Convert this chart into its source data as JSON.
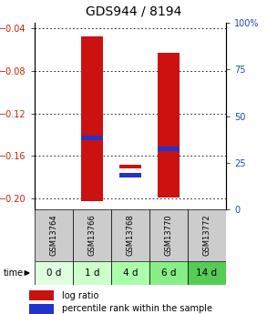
{
  "title": "GDS944 / 8194",
  "samples": [
    "GSM13764",
    "GSM13766",
    "GSM13768",
    "GSM13770",
    "GSM13772"
  ],
  "time_labels": [
    "0 d",
    "1 d",
    "4 d",
    "6 d",
    "14 d"
  ],
  "log_ratio_bottoms": [
    0.0,
    -0.202,
    -0.172,
    -0.199,
    0.0
  ],
  "log_ratio_tops": [
    0.0,
    -0.048,
    -0.168,
    -0.063,
    0.0
  ],
  "percentile_bottoms": [
    null,
    -0.145,
    -0.18,
    -0.155,
    null
  ],
  "percentile_tops": [
    null,
    -0.141,
    -0.176,
    -0.151,
    null
  ],
  "ylim": [
    -0.21,
    -0.035
  ],
  "yticks_left": [
    -0.2,
    -0.16,
    -0.12,
    -0.08,
    -0.04
  ],
  "yticks_right_pct": [
    0,
    25,
    50,
    75,
    100
  ],
  "bar_color": "#cc1111",
  "percentile_color": "#2233cc",
  "title_fontsize": 10,
  "tick_fontsize": 7,
  "sample_fontsize": 6,
  "time_fontsize": 7.5,
  "legend_fontsize": 7,
  "bar_width": 0.55,
  "time_colors": [
    "#ccffcc",
    "#aaddaa",
    "#99cc99",
    "#88bb88",
    "#77aa77"
  ],
  "sample_bg": "#cccccc"
}
